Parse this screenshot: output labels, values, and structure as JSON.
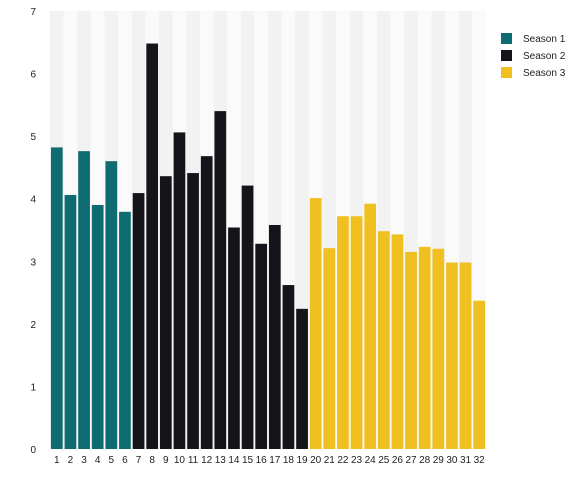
{
  "chart_data": {
    "type": "bar",
    "title": "",
    "xlabel": "",
    "ylabel": "",
    "categories": [
      "1",
      "2",
      "3",
      "4",
      "5",
      "6",
      "7",
      "8",
      "9",
      "10",
      "11",
      "12",
      "13",
      "14",
      "15",
      "16",
      "17",
      "18",
      "19",
      "20",
      "21",
      "22",
      "23",
      "24",
      "25",
      "26",
      "27",
      "28",
      "29",
      "30",
      "31",
      "32"
    ],
    "values": [
      4.82,
      4.06,
      4.76,
      3.9,
      4.6,
      3.79,
      4.09,
      6.48,
      4.36,
      5.06,
      4.41,
      4.68,
      5.4,
      3.54,
      4.21,
      3.28,
      3.58,
      2.62,
      2.24,
      4.01,
      3.21,
      3.72,
      3.72,
      3.92,
      3.48,
      3.43,
      3.15,
      3.23,
      3.2,
      2.98,
      2.98,
      2.37
    ],
    "groups": [
      {
        "name": "Season 1",
        "color": "#0e6b72",
        "from": 1,
        "to": 6
      },
      {
        "name": "Season 2",
        "color": "#15141a",
        "from": 7,
        "to": 19
      },
      {
        "name": "Season 3",
        "color": "#f0c020",
        "from": 20,
        "to": 32
      }
    ],
    "ylim": [
      0,
      7
    ],
    "yticks": [
      0,
      1,
      2,
      3,
      4,
      5,
      6,
      7
    ],
    "grid": "alternating vertical bands",
    "legend": "top-right"
  }
}
